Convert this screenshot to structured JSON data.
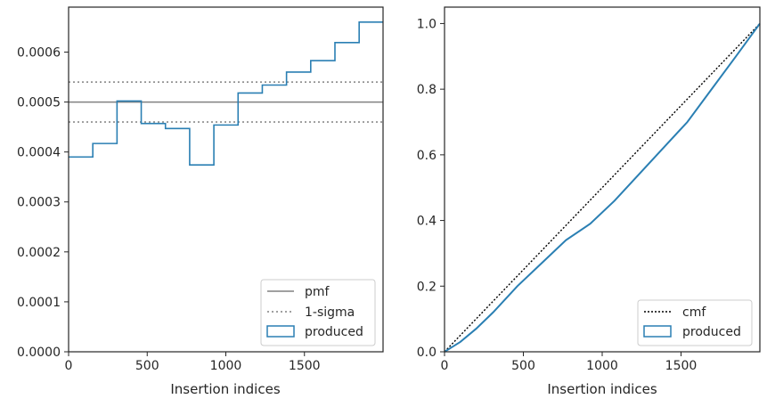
{
  "chart_data": [
    {
      "type": "step",
      "xlabel": "Insertion indices",
      "ylabel": "",
      "xlim": [
        0,
        2000
      ],
      "ylim": [
        0,
        0.00069
      ],
      "xticks": [
        0,
        500,
        1000,
        1500
      ],
      "xtick_labels": [
        "0",
        "500",
        "1000",
        "1500"
      ],
      "yticks": [
        0,
        0.0001,
        0.0002,
        0.0003,
        0.0004,
        0.0005,
        0.0006
      ],
      "ytick_labels": [
        "0.0000",
        "0.0001",
        "0.0002",
        "0.0003",
        "0.0004",
        "0.0005",
        "0.0006"
      ],
      "bin_edges": [
        0,
        154,
        308,
        462,
        616,
        770,
        924,
        1078,
        1232,
        1386,
        1540,
        1694,
        1848,
        2000
      ],
      "series": [
        {
          "name": "produced",
          "kind": "histogram-step",
          "color": "#2a7fb3",
          "values": [
            0.00039,
            0.000417,
            0.000502,
            0.000457,
            0.000447,
            0.000374,
            0.000454,
            0.000518,
            0.000534,
            0.00056,
            0.000583,
            0.000619,
            0.00066
          ]
        },
        {
          "name": "pmf",
          "kind": "hline",
          "color": "#808080",
          "value": 0.0005
        },
        {
          "name": "1-sigma",
          "kind": "hline-dotted",
          "color": "#808080",
          "values": [
            0.00046,
            0.00054
          ]
        }
      ],
      "legend": {
        "placement": "lower-right",
        "entries": [
          "pmf",
          "1-sigma",
          "produced"
        ]
      }
    },
    {
      "type": "line",
      "xlabel": "Insertion indices",
      "ylabel": "",
      "xlim": [
        0,
        2000
      ],
      "ylim": [
        0,
        1.05
      ],
      "xticks": [
        0,
        500,
        1000,
        1500
      ],
      "xtick_labels": [
        "0",
        "500",
        "1000",
        "1500"
      ],
      "yticks": [
        0,
        0.2,
        0.4,
        0.6,
        0.8,
        1.0
      ],
      "ytick_labels": [
        "0.0",
        "0.2",
        "0.4",
        "0.6",
        "0.8",
        "1.0"
      ],
      "series": [
        {
          "name": "cmf",
          "kind": "dotted-line",
          "color": "#000000",
          "x": [
            0,
            2000
          ],
          "y": [
            0,
            1.0
          ]
        },
        {
          "name": "produced",
          "kind": "line",
          "color": "#2a7fb3",
          "x": [
            0,
            100,
            200,
            308,
            462,
            616,
            770,
            924,
            1078,
            1232,
            1386,
            1540,
            1694,
            1848,
            2000
          ],
          "y": [
            0,
            0.03,
            0.07,
            0.12,
            0.2,
            0.27,
            0.34,
            0.39,
            0.46,
            0.54,
            0.62,
            0.7,
            0.8,
            0.9,
            1.0
          ]
        }
      ],
      "legend": {
        "placement": "lower-right",
        "entries": [
          "cmf",
          "produced"
        ]
      }
    }
  ]
}
